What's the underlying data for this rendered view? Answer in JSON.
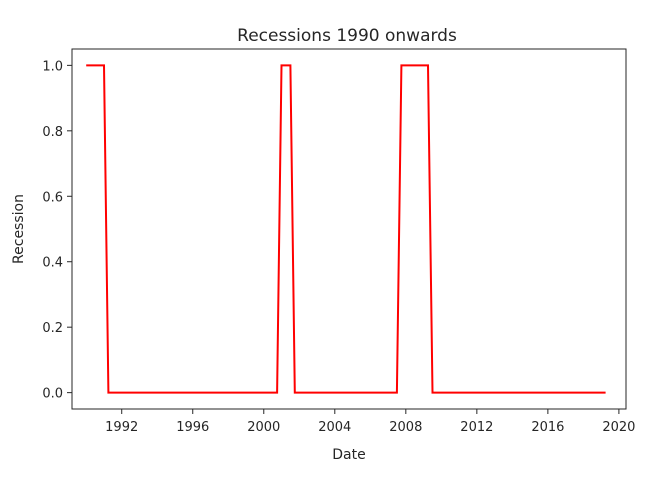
{
  "chart_data": {
    "type": "line",
    "title": "Recessions 1990 onwards",
    "xlabel": "Date",
    "ylabel": "Recession",
    "x_ticks": [
      "1992",
      "1996",
      "2000",
      "2004",
      "2008",
      "2012",
      "2016",
      "2020"
    ],
    "y_ticks": [
      "0.0",
      "0.2",
      "0.4",
      "0.6",
      "0.8",
      "1.0"
    ],
    "xlim": [
      1989.2,
      2020.4
    ],
    "ylim": [
      -0.05,
      1.05
    ],
    "grid": false,
    "series": [
      {
        "color": "#ff0000",
        "x": [
          1990.0,
          1991.0,
          1991.25,
          2000.75,
          2001.0,
          2001.5,
          2001.75,
          2007.5,
          2007.75,
          2009.25,
          2009.5,
          2019.25
        ],
        "values": [
          1,
          1,
          0,
          0,
          1,
          1,
          0,
          0,
          1,
          1,
          0,
          0
        ]
      }
    ]
  }
}
